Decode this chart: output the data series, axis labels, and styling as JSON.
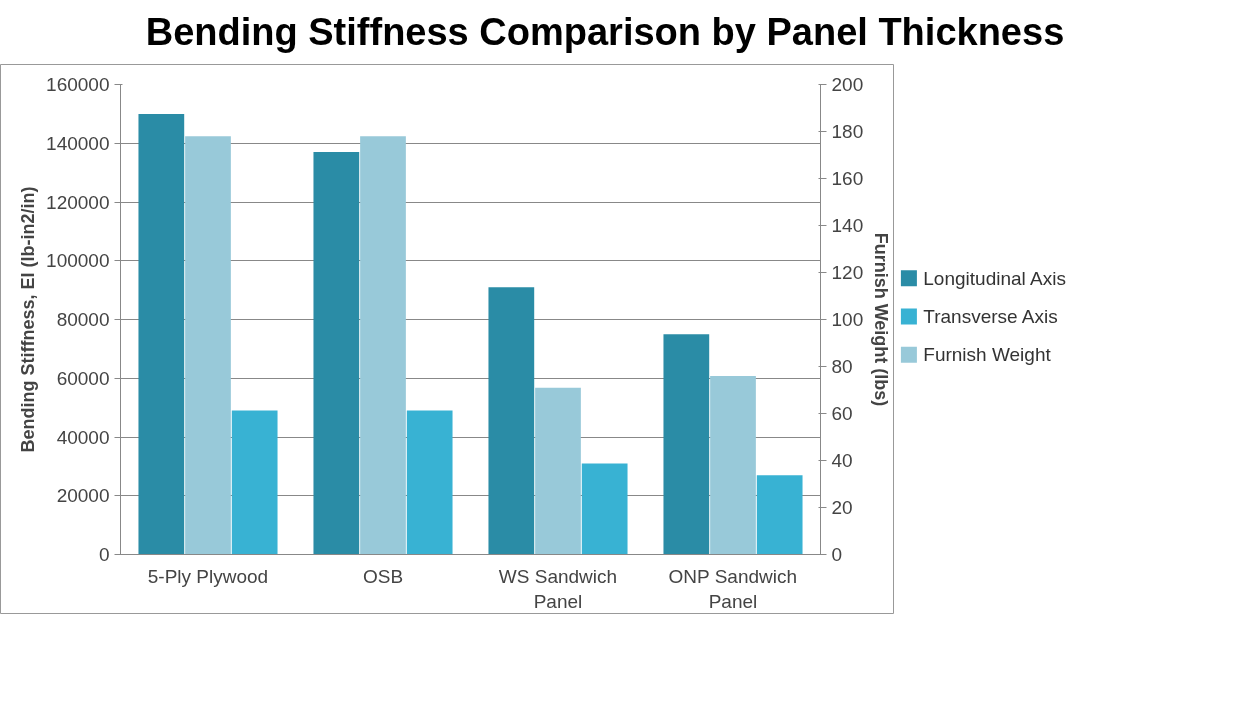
{
  "chart_data": {
    "type": "bar",
    "title": "Bending Stiffness Comparison by Panel Thickness",
    "categories": [
      "5-Ply Plywood",
      "OSB",
      "WS Sandwich Panel",
      "ONP Sandwich Panel"
    ],
    "ylabel": "Bending Stiffness, EI (lb-in2/in)",
    "y2label": "Furnish Weight (lbs)",
    "series": [
      {
        "name": "Longitudinal Axis",
        "color": "#2a8ca6",
        "values": [
          150000,
          137000,
          91000,
          75000
        ]
      },
      {
        "name": "Transverse Axis",
        "color": "#38b2d3",
        "values": [
          49000,
          49000,
          31000,
          27000
        ]
      },
      {
        "name": "Furnish Weight",
        "color": "#98c9d9",
        "values": [
          178,
          178,
          71,
          76
        ],
        "axis": "y2"
      }
    ],
    "ylim": [
      0,
      160000
    ],
    "yticks": [
      0,
      20000,
      40000,
      60000,
      80000,
      100000,
      120000,
      140000,
      160000
    ],
    "y2lim": [
      0,
      200
    ],
    "y2ticks": [
      0,
      20,
      40,
      60,
      80,
      100,
      120,
      140,
      160,
      180,
      200
    ],
    "grid": "y",
    "legend": "right"
  }
}
